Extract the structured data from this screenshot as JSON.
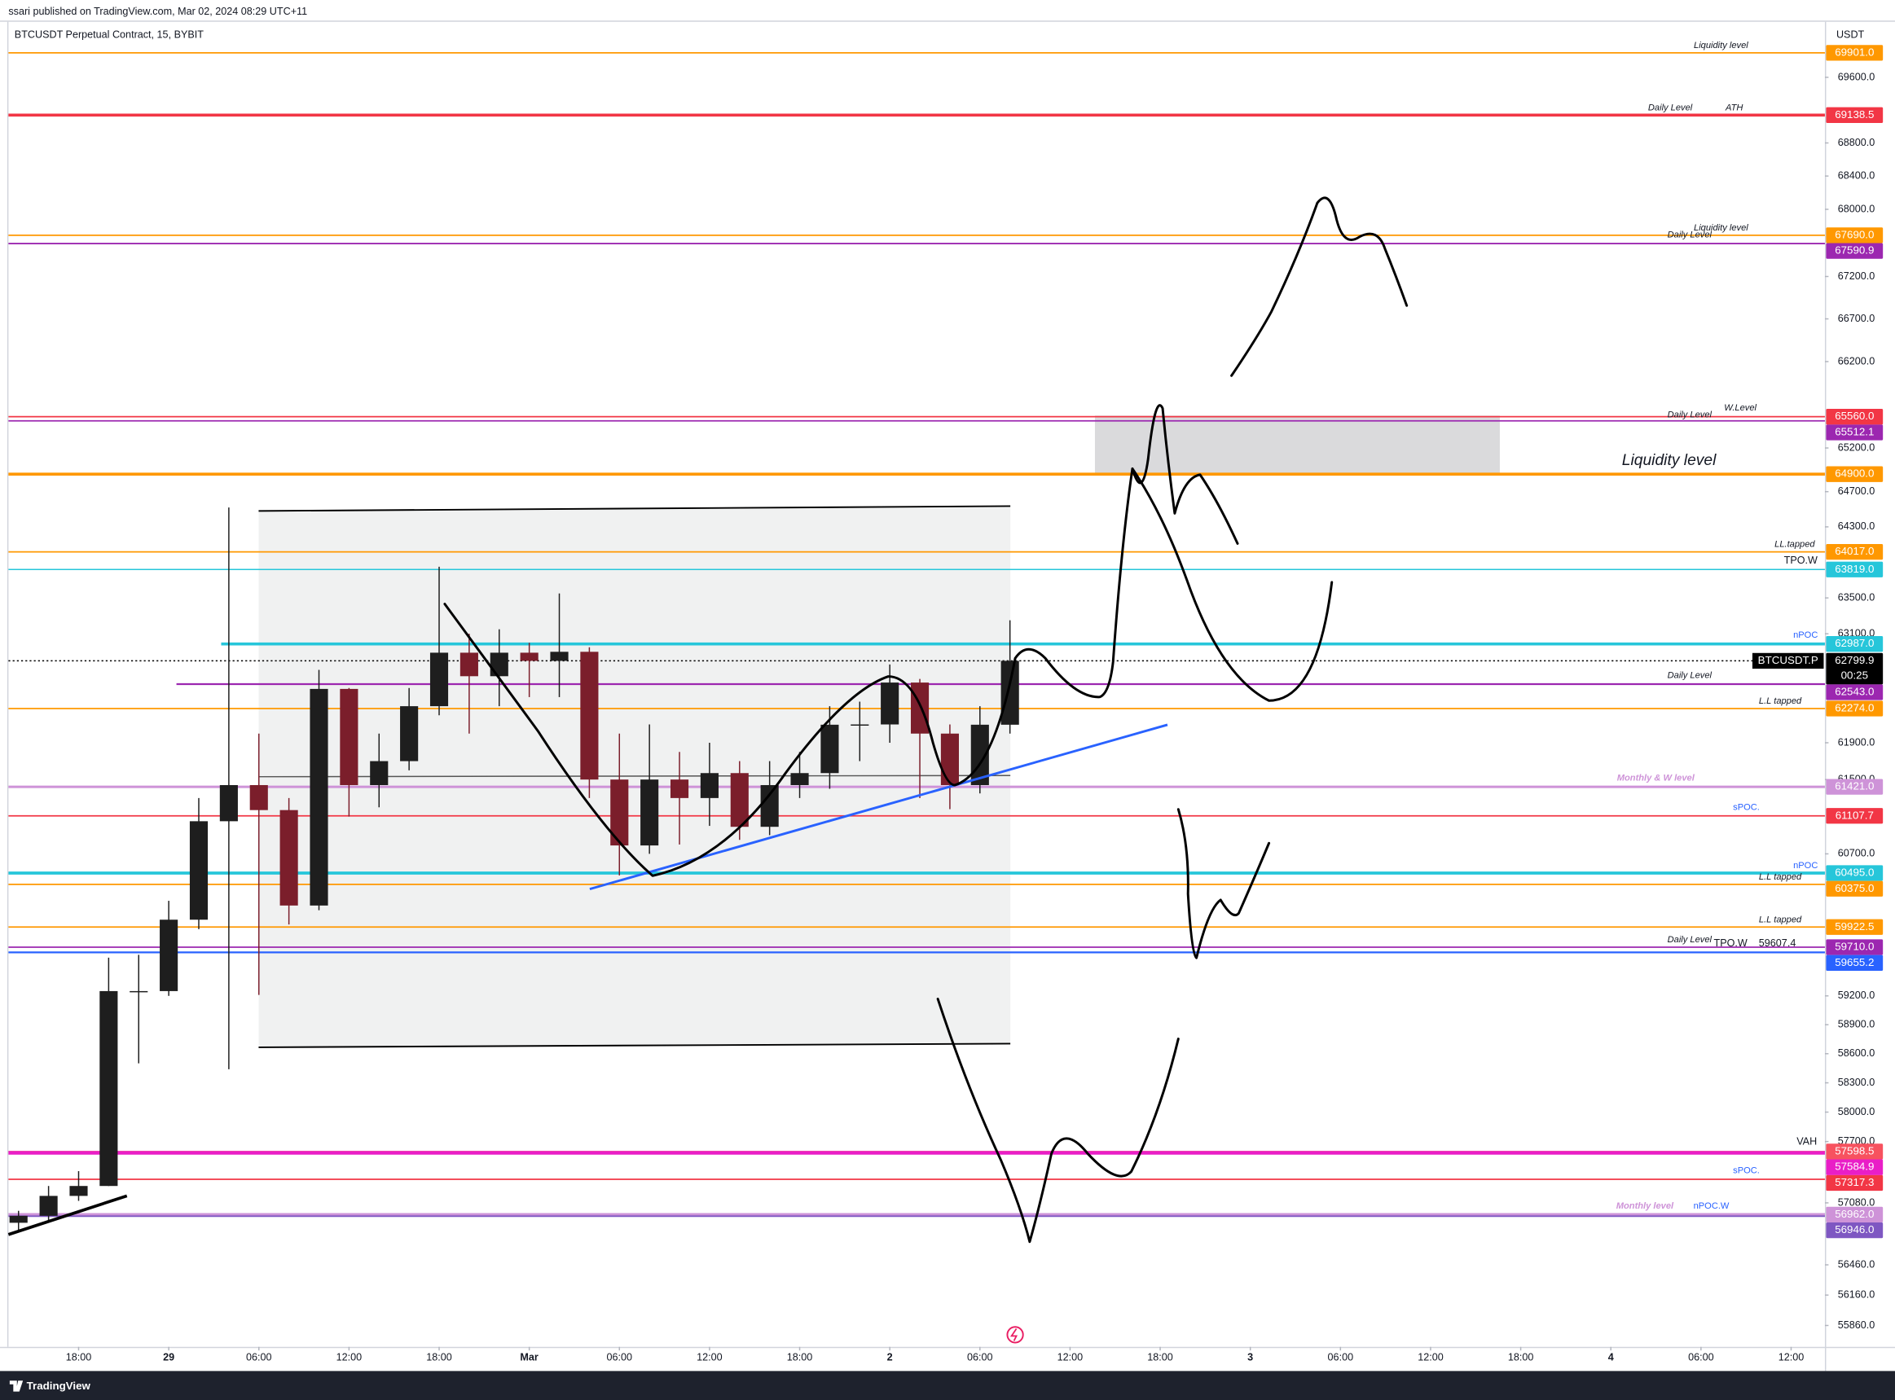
{
  "header": {
    "published": "ssari published on TradingView.com, Mar 02, 2024 08:29 UTC+11"
  },
  "footer": {
    "brand": "TradingView"
  },
  "chart_data": {
    "type": "candlestick",
    "title": "BTCUSDT Perpetual Contract, 15, BYBIT",
    "y_unit": "USDT",
    "log_scale": true,
    "up_color": "#1e1e1e",
    "down_color": "#7b1e2b",
    "x": [
      -4,
      -2,
      0,
      2,
      4,
      6,
      8,
      10,
      12,
      14,
      16,
      18,
      20,
      22,
      24,
      26,
      28,
      30,
      32,
      34,
      36,
      38,
      40,
      42,
      44,
      46,
      48,
      50,
      52,
      54,
      56,
      58,
      60,
      62
    ],
    "open": [
      56880,
      56950,
      57150,
      57250,
      59250,
      59250,
      60000,
      61050,
      61440,
      61170,
      60150,
      62490,
      61440,
      61700,
      62300,
      62890,
      62630,
      62890,
      62800,
      62900,
      61500,
      60790,
      61500,
      61300,
      61570,
      60990,
      61440,
      61570,
      62097,
      62100,
      62560,
      62000,
      61440,
      62097
    ],
    "high": [
      57000,
      57250,
      57400,
      59600,
      59630,
      60200,
      61300,
      64520,
      62000,
      61300,
      62700,
      62500,
      62000,
      62500,
      63850,
      63100,
      63150,
      63000,
      63550,
      62950,
      62000,
      62100,
      61800,
      61900,
      61700,
      61700,
      61800,
      62300,
      62350,
      62760,
      62600,
      62100,
      62300,
      63250
    ],
    "low": [
      56800,
      56900,
      57100,
      57250,
      58500,
      59200,
      59900,
      58440,
      59210,
      59950,
      60100,
      61100,
      61200,
      61600,
      62200,
      62000,
      62300,
      62400,
      62400,
      61300,
      60470,
      60700,
      60800,
      61000,
      60850,
      60900,
      61300,
      61400,
      61700,
      61900,
      61300,
      61180,
      61350,
      62000
    ],
    "close": [
      56950,
      57150,
      57250,
      59250,
      59250,
      60000,
      61050,
      61440,
      61170,
      60150,
      62490,
      61440,
      61700,
      62300,
      62890,
      62630,
      62890,
      62800,
      62900,
      61500,
      60790,
      61500,
      61300,
      61570,
      60990,
      61440,
      61570,
      62097,
      62100,
      62560,
      62000,
      61440,
      62097,
      62799.9
    ],
    "xlim": [
      -4.67,
      116.25
    ],
    "xticks": [
      {
        "value": 0,
        "label": "18:00"
      },
      {
        "value": 6,
        "label": "29"
      },
      {
        "value": 12,
        "label": "06:00"
      },
      {
        "value": 18,
        "label": "12:00"
      },
      {
        "value": 24,
        "label": "18:00"
      },
      {
        "value": 30,
        "label": "Mar"
      },
      {
        "value": 36,
        "label": "06:00"
      },
      {
        "value": 42,
        "label": "12:00"
      },
      {
        "value": 48,
        "label": "18:00"
      },
      {
        "value": 54,
        "label": "2"
      },
      {
        "value": 60,
        "label": "06:00"
      },
      {
        "value": 66,
        "label": "12:00"
      },
      {
        "value": 72,
        "label": "18:00"
      },
      {
        "value": 78,
        "label": "3"
      },
      {
        "value": 84,
        "label": "06:00"
      },
      {
        "value": 90,
        "label": "12:00"
      },
      {
        "value": 96,
        "label": "18:00"
      },
      {
        "value": 102,
        "label": "4"
      },
      {
        "value": 108,
        "label": "06:00"
      },
      {
        "value": 114,
        "label": "12:00"
      }
    ],
    "ylim": [
      55650,
      70285
    ],
    "yticks": [
      {
        "value": 69600,
        "label": "69600.0"
      },
      {
        "value": 68800,
        "label": "68800.0"
      },
      {
        "value": 68400,
        "label": "68400.0"
      },
      {
        "value": 68000,
        "label": "68000.0"
      },
      {
        "value": 67200,
        "label": "67200.0"
      },
      {
        "value": 66700,
        "label": "66700.0"
      },
      {
        "value": 66200,
        "label": "66200.0"
      },
      {
        "value": 65200,
        "label": "65200.0"
      },
      {
        "value": 64700,
        "label": "64700.0"
      },
      {
        "value": 64300,
        "label": "64300.0"
      },
      {
        "value": 63500,
        "label": "63500.0"
      },
      {
        "value": 63100,
        "label": "63100.0"
      },
      {
        "value": 61900,
        "label": "61900.0"
      },
      {
        "value": 61500,
        "label": "61500.0"
      },
      {
        "value": 60700,
        "label": "60700.0"
      },
      {
        "value": 59200,
        "label": "59200.0"
      },
      {
        "value": 58900,
        "label": "58900.0"
      },
      {
        "value": 58600,
        "label": "58600.0"
      },
      {
        "value": 58300,
        "label": "58300.0"
      },
      {
        "value": 58000,
        "label": "58000.0"
      },
      {
        "value": 57700,
        "label": "57700.0"
      },
      {
        "value": 57080,
        "label": "57080.0"
      },
      {
        "value": 56460,
        "label": "56460.0"
      },
      {
        "value": 56160,
        "label": "56160.0"
      },
      {
        "value": 55860,
        "label": "55860.0"
      }
    ],
    "current_price": {
      "value": 62799.9,
      "value_label": "62799.9",
      "symbol": "BTCUSDT.P",
      "countdown": "00:25"
    },
    "levels": [
      {
        "value": 69901,
        "value_label": "69901.0",
        "color": "#ff9800",
        "notes": [
          "Liquidity level"
        ]
      },
      {
        "value": 69138.5,
        "value_label": "69138.5",
        "color": "#f23645",
        "notes": [
          "Daily Level",
          "ATH"
        ]
      },
      {
        "value": 67690,
        "value_label": "67690.0",
        "color": "#ff9800",
        "notes": [
          "Liquidity level"
        ]
      },
      {
        "value": 67590.9,
        "value_label": "67590.9",
        "color": "#9c27b0",
        "notes": [
          "Daily Level"
        ]
      },
      {
        "value": 65560,
        "value_label": "65560.0",
        "color": "#f23645",
        "notes": [
          "W.Level"
        ]
      },
      {
        "value": 65512.1,
        "value_label": "65512.1",
        "color": "#9c27b0",
        "notes": [
          "Daily Level"
        ]
      },
      {
        "value": 64900,
        "value_label": "64900.0",
        "color": "#ff9800",
        "notes": [
          "Liquidity level"
        ]
      },
      {
        "value": 64017,
        "value_label": "64017.0",
        "color": "#ff9800",
        "notes": [
          "LL.tapped"
        ]
      },
      {
        "value": 63819,
        "value_label": "63819.0",
        "color": "#26c6da",
        "notes": [
          "TPO.W"
        ]
      },
      {
        "value": 62987,
        "value_label": "62987.0",
        "color": "#26c6da",
        "notes": [
          "nPOC"
        ]
      },
      {
        "value": 62543,
        "value_label": "62543.0",
        "color": "#9c27b0",
        "notes": [
          "Daily Level"
        ]
      },
      {
        "value": 62274,
        "value_label": "62274.0",
        "color": "#ff9800",
        "notes": [
          "L.L tapped"
        ]
      },
      {
        "value": 61421,
        "value_label": "61421.0",
        "color": "#ce93d8",
        "notes": [
          "Monthly & W level"
        ]
      },
      {
        "value": 61107.7,
        "value_label": "61107.7",
        "color": "#f23645",
        "notes": [
          "sPOC."
        ]
      },
      {
        "value": 60495,
        "value_label": "60495.0",
        "color": "#26c6da",
        "notes": [
          "nPOC"
        ]
      },
      {
        "value": 60375,
        "value_label": "60375.0",
        "color": "#ff9800",
        "notes": [
          "L.L tapped"
        ]
      },
      {
        "value": 59922.5,
        "value_label": "59922.5",
        "color": "#ff9800",
        "notes": [
          "L.L tapped"
        ]
      },
      {
        "value": 59710,
        "value_label": "59710.0",
        "color": "#9c27b0",
        "notes": [
          "Daily Level",
          "TPO.W    59607.4"
        ]
      },
      {
        "value": 59655.2,
        "value_label": "59655.2",
        "color": "#2962ff",
        "notes": []
      },
      {
        "value": 57598.5,
        "value_label": "57598.5",
        "color": "#f7525f",
        "notes": [
          "VAH"
        ]
      },
      {
        "value": 57584.9,
        "value_label": "57584.9",
        "color": "#e91ec7",
        "notes": []
      },
      {
        "value": 57317.3,
        "value_label": "57317.3",
        "color": "#f23645",
        "notes": [
          "sPOC."
        ]
      },
      {
        "value": 56962,
        "value_label": "56962.0",
        "color": "#ce93d8",
        "notes": [
          "Monthly level",
          "nPOC.W"
        ]
      },
      {
        "value": 56946,
        "value_label": "56946.0",
        "color": "#7e57c2",
        "notes": []
      }
    ]
  }
}
